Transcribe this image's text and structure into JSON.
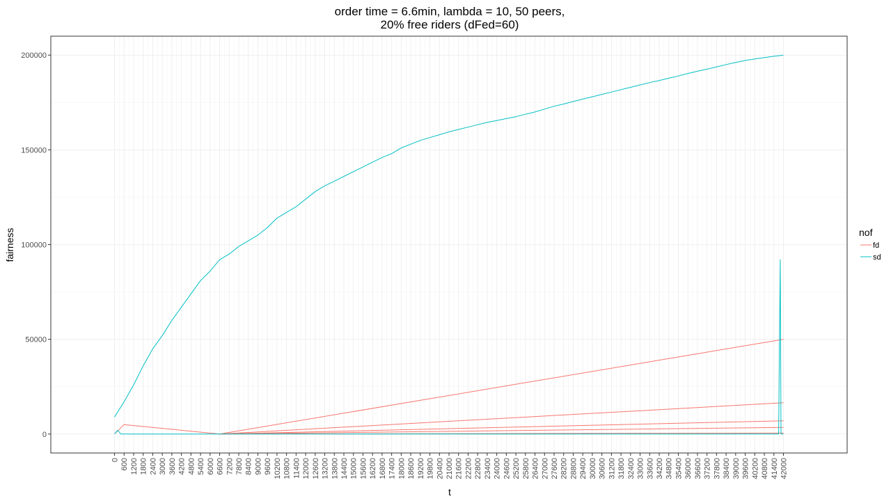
{
  "chart_data": {
    "type": "line",
    "title_lines": [
      "order time = 6.6min, lambda = 10, 50 peers,",
      "20% free riders (dFed=60)"
    ],
    "xlabel": "t",
    "ylabel": "fairness",
    "xlim": [
      -4000,
      46000
    ],
    "ylim": [
      -10000,
      210000
    ],
    "x_ticks": [
      0,
      600,
      1200,
      1800,
      2400,
      3000,
      3600,
      4200,
      4800,
      5400,
      6000,
      6600,
      7200,
      7800,
      8400,
      9000,
      9600,
      10200,
      10800,
      11400,
      12000,
      12600,
      13200,
      13800,
      14400,
      15000,
      15600,
      16200,
      16800,
      17400,
      18000,
      18600,
      19200,
      19800,
      20400,
      21000,
      21600,
      22200,
      22800,
      23400,
      24000,
      24600,
      25200,
      25800,
      26400,
      27000,
      27600,
      28200,
      28800,
      29400,
      30000,
      30600,
      31200,
      31800,
      32400,
      33000,
      33600,
      34200,
      34800,
      35400,
      36000,
      36600,
      37200,
      37800,
      38400,
      39000,
      39600,
      40200,
      40800,
      41400,
      42000
    ],
    "y_ticks": [
      0,
      50000,
      100000,
      150000,
      200000
    ],
    "y_tick_labels": [
      "0",
      "50000",
      "100000",
      "150000",
      "200000"
    ],
    "legend": {
      "title": "nof",
      "position": "right",
      "entries": [
        {
          "label": "fd",
          "color": "#F8766D"
        },
        {
          "label": "sd",
          "color": "#00BFC4"
        }
      ]
    },
    "grid": true,
    "series": [
      {
        "name": "sd",
        "color": "#00BFC4",
        "lines": [
          {
            "x": [
              0,
              600,
              1200,
              1800,
              2400,
              3000,
              3600,
              4200,
              4800,
              5400,
              6000,
              6600,
              7200,
              7800,
              8400,
              9000,
              9600,
              10200,
              10800,
              11400,
              12000,
              12600,
              13200,
              13800,
              14400,
              15000,
              15600,
              16200,
              16800,
              17400,
              18000,
              18600,
              19200,
              19800,
              20400,
              21000,
              21600,
              22200,
              22800,
              23400,
              24000,
              24600,
              25200,
              25800,
              26400,
              27000,
              27600,
              28200,
              28800,
              29400,
              30000,
              30600,
              31200,
              31800,
              32400,
              33000,
              33600,
              34200,
              34800,
              35400,
              36000,
              36600,
              37200,
              37800,
              38400,
              39000,
              39600,
              40200,
              40800,
              41400,
              42000
            ],
            "y": [
              9000,
              17000,
              26000,
              36000,
              45000,
              52000,
              60000,
              67000,
              74000,
              81000,
              86000,
              92000,
              95000,
              99000,
              102000,
              105000,
              109000,
              114000,
              117000,
              120000,
              124000,
              128000,
              131000,
              133500,
              136000,
              138500,
              141000,
              143500,
              146000,
              148000,
              151000,
              153000,
              155000,
              156500,
              158000,
              159500,
              160800,
              162000,
              163300,
              164500,
              165500,
              166500,
              167500,
              168800,
              170000,
              171500,
              173000,
              174200,
              175500,
              176800,
              178000,
              179300,
              180500,
              181800,
              183000,
              184300,
              185500,
              186600,
              187800,
              189000,
              190300,
              191500,
              192600,
              193800,
              195000,
              196100,
              197200,
              198000,
              198700,
              199400,
              200000
            ]
          },
          {
            "x": [
              0,
              200,
              400,
              600,
              6600,
              41400,
              41700,
              41800,
              41850,
              42000
            ],
            "y": [
              0,
              2000,
              0,
              0,
              0,
              0,
              0,
              92000,
              0,
              0
            ]
          }
        ]
      },
      {
        "name": "fd",
        "color": "#F8766D",
        "lines": [
          {
            "x": [
              0,
              600,
              6600,
              42000
            ],
            "y": [
              0,
              5000,
              0,
              50000
            ]
          },
          {
            "x": [
              6600,
              42000
            ],
            "y": [
              0,
              16500
            ]
          },
          {
            "x": [
              6600,
              42000
            ],
            "y": [
              0,
              7000
            ]
          },
          {
            "x": [
              6600,
              42000
            ],
            "y": [
              0,
              3500
            ]
          },
          {
            "x": [
              6600,
              42000
            ],
            "y": [
              0,
              500
            ]
          }
        ]
      }
    ]
  }
}
